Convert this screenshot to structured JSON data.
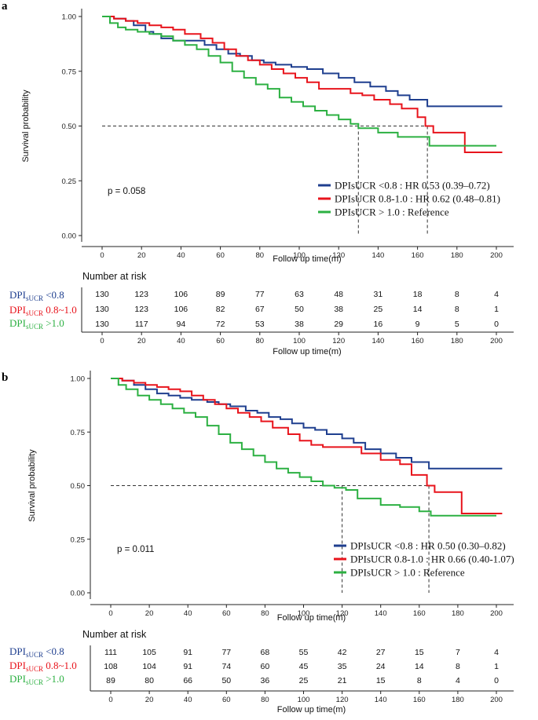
{
  "chart_data": [
    {
      "panel": "a",
      "type": "line",
      "chart_kind": "kaplan-meier",
      "ylabel": "Survival probability",
      "xlabel": "Follow up time(m)",
      "xlim": [
        0,
        200
      ],
      "ylim": [
        0,
        1
      ],
      "x_ticks": [
        0,
        20,
        40,
        60,
        80,
        100,
        120,
        140,
        160,
        180,
        200
      ],
      "y_ticks": [
        "0.00",
        "0.25",
        "0.50",
        "0.75",
        "1.00"
      ],
      "p_value": "p = 0.058",
      "median_line_y": 0.5,
      "median_drops_x": [
        130,
        165
      ],
      "legend": [
        "DPIsUCR <0.8 : HR 0.53 (0.39–0.72)",
        "DPIsUCR 0.8-1.0 : HR 0.62 (0.48–0.81)",
        "DPIsUCR > 1.0 : Reference"
      ],
      "series": [
        {
          "name": "DPIsUCR <0.8",
          "color": "#1f3f8f",
          "x": [
            0,
            6,
            12,
            16,
            22,
            26,
            30,
            36,
            44,
            52,
            58,
            64,
            70,
            76,
            82,
            88,
            96,
            104,
            112,
            120,
            128,
            136,
            144,
            150,
            156,
            160,
            165,
            203
          ],
          "y": [
            1.0,
            0.99,
            0.98,
            0.96,
            0.93,
            0.92,
            0.9,
            0.89,
            0.89,
            0.87,
            0.85,
            0.83,
            0.82,
            0.8,
            0.79,
            0.78,
            0.77,
            0.76,
            0.74,
            0.72,
            0.7,
            0.68,
            0.66,
            0.64,
            0.62,
            0.62,
            0.59,
            0.59
          ]
        },
        {
          "name": "DPIsUCR 0.8-1.0",
          "color": "#e8141c",
          "x": [
            0,
            6,
            12,
            18,
            24,
            30,
            36,
            42,
            50,
            56,
            62,
            68,
            74,
            80,
            86,
            92,
            98,
            104,
            110,
            120,
            126,
            132,
            138,
            146,
            152,
            160,
            164,
            168,
            184,
            203
          ],
          "y": [
            1.0,
            0.99,
            0.98,
            0.97,
            0.96,
            0.95,
            0.94,
            0.92,
            0.9,
            0.88,
            0.85,
            0.82,
            0.8,
            0.78,
            0.76,
            0.74,
            0.72,
            0.7,
            0.67,
            0.67,
            0.65,
            0.64,
            0.62,
            0.6,
            0.58,
            0.54,
            0.5,
            0.47,
            0.38,
            0.38
          ]
        },
        {
          "name": "DPIsUCR > 1.0",
          "color": "#2cb042",
          "x": [
            0,
            4,
            8,
            12,
            18,
            24,
            30,
            36,
            42,
            48,
            54,
            60,
            66,
            72,
            78,
            84,
            90,
            96,
            102,
            108,
            114,
            120,
            126,
            130,
            140,
            150,
            160,
            166,
            200
          ],
          "y": [
            1.0,
            0.97,
            0.95,
            0.94,
            0.93,
            0.92,
            0.91,
            0.89,
            0.87,
            0.85,
            0.82,
            0.79,
            0.75,
            0.72,
            0.69,
            0.67,
            0.63,
            0.61,
            0.59,
            0.57,
            0.55,
            0.53,
            0.51,
            0.49,
            0.47,
            0.45,
            0.45,
            0.41,
            0.41
          ]
        }
      ],
      "risk_table": {
        "title": "Number at risk",
        "groups": [
          {
            "label": "DPI",
            "sub": "sUCR",
            "suffix": " <0.8",
            "color": "#1f3f8f",
            "values": [
              130,
              123,
              106,
              89,
              77,
              63,
              48,
              31,
              18,
              8,
              4
            ]
          },
          {
            "label": "DPI",
            "sub": "sUCR",
            "suffix": " 0.8~1.0",
            "color": "#e8141c",
            "values": [
              130,
              123,
              106,
              82,
              67,
              50,
              38,
              25,
              14,
              8,
              1
            ]
          },
          {
            "label": "DPI",
            "sub": "sUCR",
            "suffix": " >1.0",
            "color": "#2cb042",
            "values": [
              130,
              117,
              94,
              72,
              53,
              38,
              29,
              16,
              9,
              5,
              0
            ]
          }
        ],
        "xlabel": "Follow up time(m)"
      }
    },
    {
      "panel": "b",
      "type": "line",
      "chart_kind": "kaplan-meier",
      "ylabel": "Survival probability",
      "xlabel": "Follow up time(m)",
      "xlim": [
        0,
        200
      ],
      "ylim": [
        0,
        1
      ],
      "x_ticks": [
        0,
        20,
        40,
        60,
        80,
        100,
        120,
        140,
        160,
        180,
        200
      ],
      "y_ticks": [
        "0.00",
        "0.25",
        "0.50",
        "0.75",
        "1.00"
      ],
      "p_value": "p = 0.011",
      "median_line_y": 0.5,
      "median_drops_x": [
        120,
        165
      ],
      "legend": [
        "DPIsUCR <0.8 : HR 0.50 (0.30–0.82)",
        "DPIsUCR 0.8-1.0 : HR 0.66 (0.40-1.07)",
        "DPIsUCR > 1.0 : Reference"
      ],
      "series": [
        {
          "name": "DPIsUCR <0.8",
          "color": "#1f3f8f",
          "x": [
            0,
            6,
            12,
            18,
            24,
            30,
            36,
            42,
            50,
            56,
            62,
            70,
            76,
            82,
            88,
            94,
            100,
            106,
            112,
            120,
            126,
            132,
            140,
            148,
            156,
            165,
            203
          ],
          "y": [
            1.0,
            0.99,
            0.97,
            0.95,
            0.93,
            0.92,
            0.91,
            0.9,
            0.89,
            0.88,
            0.87,
            0.85,
            0.84,
            0.82,
            0.81,
            0.79,
            0.77,
            0.76,
            0.74,
            0.72,
            0.7,
            0.67,
            0.65,
            0.63,
            0.61,
            0.58,
            0.58
          ]
        },
        {
          "name": "DPIsUCR 0.8-1.0",
          "color": "#e8141c",
          "x": [
            0,
            6,
            12,
            18,
            24,
            30,
            36,
            42,
            48,
            54,
            60,
            66,
            72,
            78,
            84,
            92,
            98,
            104,
            110,
            120,
            130,
            140,
            150,
            156,
            164,
            168,
            182,
            203
          ],
          "y": [
            1.0,
            0.99,
            0.98,
            0.97,
            0.96,
            0.95,
            0.94,
            0.92,
            0.9,
            0.88,
            0.86,
            0.84,
            0.82,
            0.8,
            0.77,
            0.74,
            0.71,
            0.69,
            0.68,
            0.68,
            0.65,
            0.62,
            0.6,
            0.55,
            0.5,
            0.47,
            0.37,
            0.37
          ]
        },
        {
          "name": "DPIsUCR > 1.0",
          "color": "#2cb042",
          "x": [
            0,
            4,
            8,
            14,
            20,
            26,
            32,
            38,
            44,
            50,
            56,
            62,
            68,
            74,
            80,
            86,
            92,
            98,
            104,
            110,
            116,
            122,
            128,
            140,
            150,
            160,
            166,
            200
          ],
          "y": [
            1.0,
            0.97,
            0.95,
            0.92,
            0.9,
            0.88,
            0.86,
            0.84,
            0.82,
            0.78,
            0.74,
            0.7,
            0.67,
            0.64,
            0.61,
            0.58,
            0.56,
            0.54,
            0.52,
            0.5,
            0.49,
            0.48,
            0.44,
            0.41,
            0.4,
            0.38,
            0.36,
            0.36
          ]
        }
      ],
      "risk_table": {
        "title": "Number at risk",
        "groups": [
          {
            "label": "DPI",
            "sub": "sUCR",
            "suffix": " <0.8",
            "color": "#1f3f8f",
            "values": [
              111,
              105,
              91,
              77,
              68,
              55,
              42,
              27,
              15,
              7,
              4
            ]
          },
          {
            "label": "DPI",
            "sub": "sUCR",
            "suffix": " 0.8~1.0",
            "color": "#e8141c",
            "values": [
              108,
              104,
              91,
              74,
              60,
              45,
              35,
              24,
              14,
              8,
              1
            ]
          },
          {
            "label": "DPI",
            "sub": "sUCR",
            "suffix": " >1.0",
            "color": "#2cb042",
            "values": [
              89,
              80,
              66,
              50,
              36,
              25,
              21,
              15,
              8,
              4,
              0
            ]
          }
        ],
        "xlabel": "Follow up time(m)"
      }
    }
  ]
}
